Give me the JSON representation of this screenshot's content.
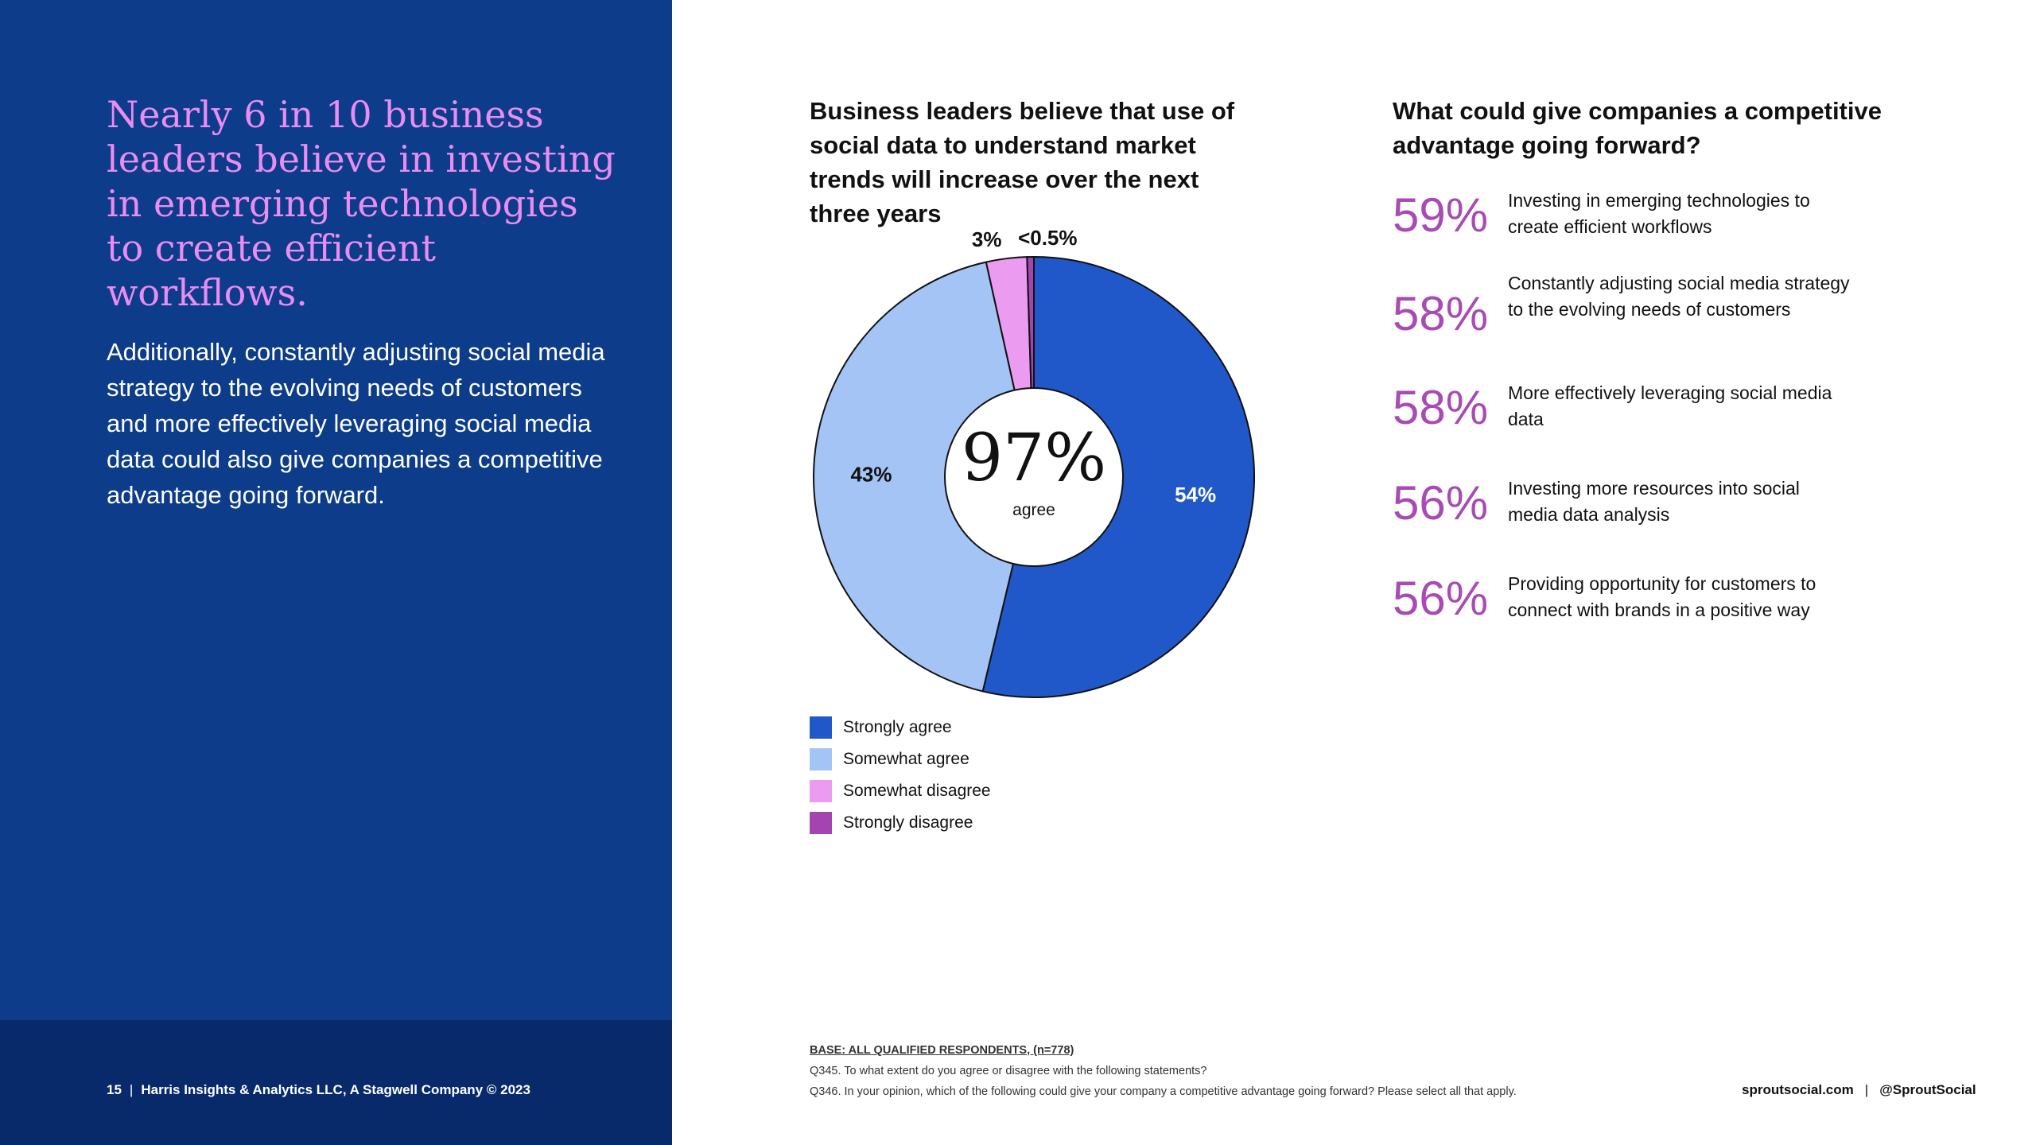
{
  "left": {
    "headline": "Nearly 6 in 10 business leaders believe in investing in emerging technologies to create efficient workflows.",
    "body": "Additionally, constantly adjusting social media strategy to the evolving needs of customers and more effectively leveraging social media data could also give companies a competitive advantage going forward.",
    "footer": {
      "page_number": "15",
      "separator": "|",
      "credit": "Harris Insights & Analytics LLC, A Stagwell Company © 2023"
    }
  },
  "colors": {
    "left_bg": "#0c3c8a",
    "left_footer_bg": "#082a6b",
    "headline": "#ea8cf0",
    "accent_purple": "#a84bb4"
  },
  "chart_data": {
    "type": "pie",
    "title": "Business leaders believe that use of social data to understand market trends will increase over the next three years",
    "center_value": "97%",
    "center_label": "agree",
    "slices": [
      {
        "name": "Strongly agree",
        "value": 54,
        "label": "54%",
        "color": "#2058c9",
        "label_color": "#ffffff"
      },
      {
        "name": "Somewhat agree",
        "value": 43,
        "label": "43%",
        "color": "#a4c4f5",
        "label_color": "#111111"
      },
      {
        "name": "Somewhat disagree",
        "value": 3,
        "label": "3%",
        "color": "#eb9cf0",
        "label_color": "#111111"
      },
      {
        "name": "Strongly disagree",
        "value": 0.5,
        "label": "<0.5%",
        "color": "#a344b0",
        "label_color": "#111111"
      }
    ],
    "legend": [
      {
        "label": "Strongly agree",
        "color": "#2058c9"
      },
      {
        "label": "Somewhat agree",
        "color": "#a4c4f5"
      },
      {
        "label": "Somewhat disagree",
        "color": "#eb9cf0"
      },
      {
        "label": "Strongly disagree",
        "color": "#a344b0"
      }
    ]
  },
  "advantage": {
    "title": "What could give companies a competitive advantage going forward?",
    "items": [
      {
        "pct": "59%",
        "text": "Investing in emerging technologies to create efficient workflows"
      },
      {
        "pct": "58%",
        "text": "Constantly adjusting social media strategy to the evolving needs of customers"
      },
      {
        "pct": "58%",
        "text": "More effectively leveraging social media data"
      },
      {
        "pct": "56%",
        "text": "Investing more resources into social media data analysis"
      },
      {
        "pct": "56%",
        "text": "Providing opportunity for customers to connect with brands in a positive way"
      }
    ]
  },
  "notes": {
    "base": "BASE: ALL QUALIFIED RESPONDENTS, (n=778)",
    "q345": "Q345. To what extent do you agree or disagree with the following statements?",
    "q346": "Q346. In your opinion, which of the following could give your company a competitive advantage going forward? Please select all that apply."
  },
  "footer_right": {
    "site": "sproutsocial.com",
    "separator": "|",
    "handle": "@SproutSocial"
  }
}
